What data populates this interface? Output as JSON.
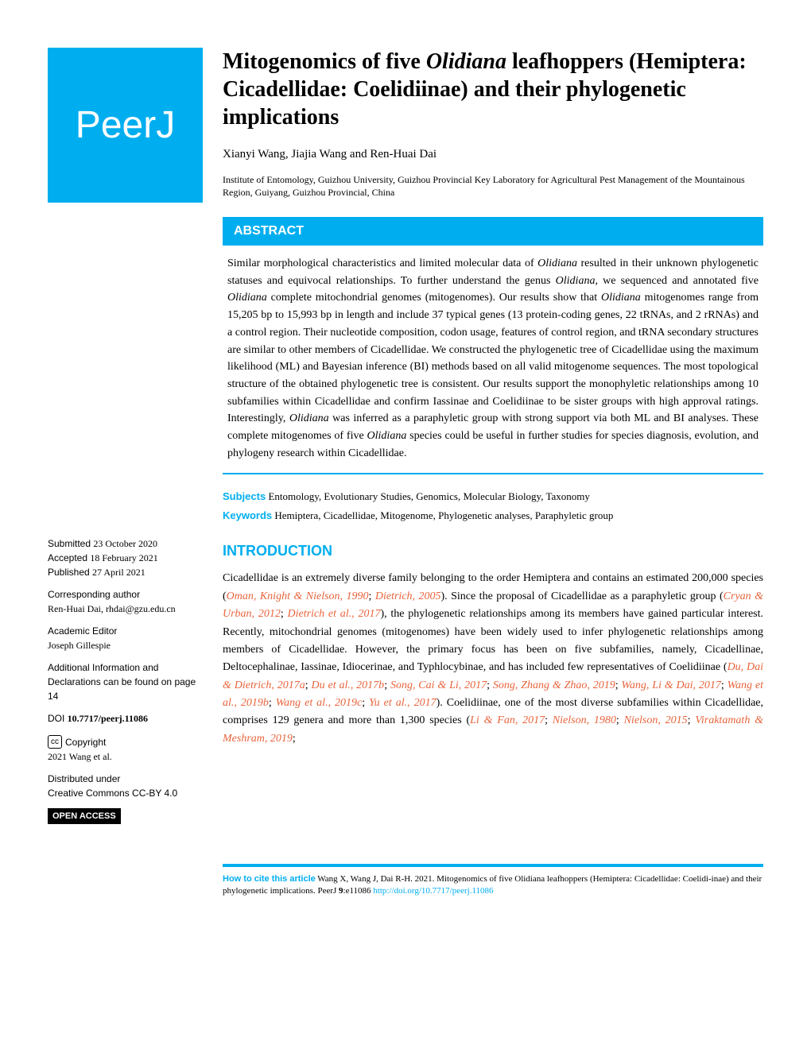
{
  "logo": "PeerJ",
  "title_pre": "Mitogenomics of five ",
  "title_italic": "Olidiana",
  "title_post": " leafhoppers (Hemiptera: Cicadellidae: Coelidiinae) and their phylogenetic implications",
  "authors": "Xianyi Wang,  Jiajia Wang and  Ren-Huai Dai",
  "affiliation": "Institute of Entomology, Guizhou University, Guizhou Provincial Key Laboratory for Agricultural Pest Management of the Mountainous Region, Guiyang, Guizhou Provincial, China",
  "abstract_label": "ABSTRACT",
  "abstract_p1a": "Similar morphological characteristics and limited molecular data of ",
  "abstract_i1": "Olidiana",
  "abstract_p1b": " resulted in their unknown phylogenetic statuses and equivocal relationships. To further understand the genus ",
  "abstract_i2": "Olidiana",
  "abstract_p1c": ", we sequenced and annotated five ",
  "abstract_i3": "Olidiana",
  "abstract_p1d": " complete mitochondrial genomes (mitogenomes). Our results show that ",
  "abstract_i4": "Olidiana",
  "abstract_p1e": " mitogenomes range from 15,205 bp to 15,993 bp in length and include 37 typical genes (13 protein-coding genes, 22 tRNAs, and 2 rRNAs) and a control region. Their nucleotide composition, codon usage, features of control region, and tRNA secondary structures are similar to other members of Cicadellidae. We constructed the phylogenetic tree of Cicadellidae using the maximum likelihood (ML) and Bayesian inference (BI) methods based on all valid mitogenome sequences. The most topological structure of the obtained phylogenetic tree is consistent. Our results support the monophyletic relationships among 10 subfamilies within Cicadellidae and confirm Iassinae and Coelidiinae to be sister groups with high approval ratings. Interestingly, ",
  "abstract_i5": "Olidiana",
  "abstract_p1f": " was inferred as a paraphyletic group with strong support via both ML and BI analyses. These complete mitogenomes of five ",
  "abstract_i6": "Olidiana",
  "abstract_p1g": " species could be useful in further studies for species diagnosis, evolution, and phylogeny research within Cicadellidae.",
  "subjects_label": "Subjects",
  "subjects_text": " Entomology, Evolutionary Studies, Genomics, Molecular Biology, Taxonomy",
  "keywords_label": "Keywords",
  "keywords_text": "  Hemiptera, Cicadellidae, Mitogenome, Phylogenetic analyses, Paraphyletic group",
  "intro_label": "INTRODUCTION",
  "intro_a": "Cicadellidae is an extremely diverse family belonging to the order Hemiptera and contains an estimated 200,000 species (",
  "ref1": "Oman, Knight & Nielson, 1990",
  "sep1": "; ",
  "ref2": "Dietrich, 2005",
  "intro_b": "). Since the proposal of Cicadellidae as a paraphyletic group (",
  "ref3": "Cryan & Urban, 2012",
  "sep2": "; ",
  "ref4": "Dietrich et al., 2017",
  "intro_c": "), the phylogenetic relationships among its members have gained particular interest. Recently, mitochondrial genomes (mitogenomes) have been widely used to infer phylogenetic relationships among members of Cicadellidae. However, the primary focus has been on five subfamilies, namely, Cicadellinae, Deltocephalinae, Iassinae, Idiocerinae, and Typhlocybinae, and has included few representatives of Coelidiinae (",
  "ref5": "Du, Dai & Dietrich, 2017a",
  "sep3": "; ",
  "ref6": "Du et al., 2017b",
  "sep4": "; ",
  "ref7": "Song, Cai & Li, 2017",
  "sep5": "; ",
  "ref8": "Song, Zhang & Zhao, 2019",
  "sep6": "; ",
  "ref9": "Wang, Li & Dai, 2017",
  "sep7": "; ",
  "ref10": "Wang et al., 2019b",
  "sep8": "; ",
  "ref11": "Wang et al., 2019c",
  "sep9": "; ",
  "ref12": "Yu et al., 2017",
  "intro_d": "). Coelidiinae, one of the most diverse subfamilies within Cicadellidae, comprises 129 genera and more than 1,300 species (",
  "ref13": "Li & Fan, 2017",
  "sep10": "; ",
  "ref14": "Nielson, 1980",
  "sep11": "; ",
  "ref15": "Nielson, 2015",
  "sep12": "; ",
  "ref16": "Viraktamath & Meshram, 2019",
  "intro_e": ";",
  "side": {
    "submitted_l": "Submitted ",
    "submitted": "23 October 2020",
    "accepted_l": "Accepted  ",
    "accepted": "18 February 2021",
    "published_l": "Published ",
    "published": "27 April 2021",
    "corr_l": "Corresponding author",
    "corr": "Ren-Huai Dai, rhdai@gzu.edu.cn",
    "editor_l": "Academic Editor",
    "editor": "Joseph Gillespie",
    "addl": "Additional Information and Declarations can be found on page 14",
    "doi_l": "DOI ",
    "doi": "10.7717/peerj.11086",
    "cc": "cc",
    "copyright": " Copyright",
    "copyholder": "2021 Wang et al.",
    "dist_l": "Distributed under",
    "dist": "Creative Commons CC-BY 4.0",
    "oa": "OPEN ACCESS"
  },
  "cite_label": "How to cite this article",
  "cite_a": " Wang X, Wang J, Dai R-H. 2021. Mitogenomics of five ",
  "cite_i1": "Olidiana",
  "cite_b": " leafhoppers (Hemiptera: Cicadellidae: Coelidi-inae) and their phylogenetic implications. ",
  "cite_i2": "PeerJ",
  "cite_c": " ",
  "cite_vol": "9",
  "cite_d": ":e11086 ",
  "cite_doi": "http://doi.org/10.7717/peerj.11086"
}
